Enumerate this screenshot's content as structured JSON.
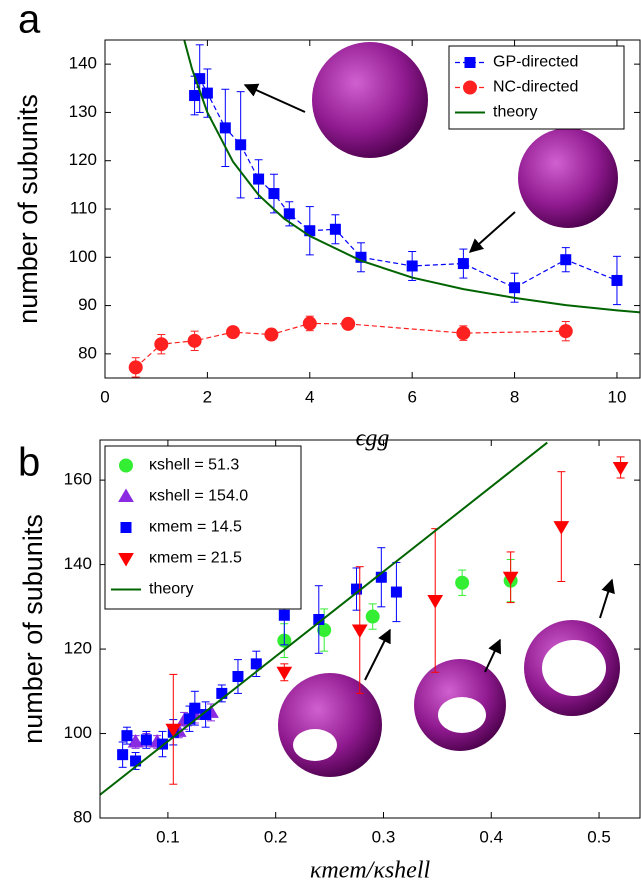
{
  "chart_data": [
    {
      "type": "line",
      "panel_label": "a",
      "y_label": "number of subunits",
      "x_label": "ϵgg",
      "xlim": [
        0,
        10.45
      ],
      "ylim": [
        75,
        145
      ],
      "xticks": [
        0,
        2,
        4,
        6,
        8,
        10
      ],
      "yticks": [
        80,
        90,
        100,
        110,
        120,
        130,
        140
      ],
      "legend": "upper right",
      "grid": false,
      "series": [
        {
          "name": "GP-directed",
          "color": "#0000ff",
          "marker": "square",
          "line_style": "dashed",
          "x": [
            1.75,
            1.85,
            2.0,
            2.35,
            2.65,
            3.0,
            3.3,
            3.6,
            4.0,
            4.5,
            5.0,
            6.0,
            7.0,
            8.0,
            9.0,
            10.0
          ],
          "values": [
            133.5,
            137,
            134,
            126.8,
            123.3,
            116.2,
            113.2,
            109,
            105.5,
            105.8,
            100,
            98.2,
            98.7,
            93.7,
            99.5,
            95.2
          ],
          "errors": [
            4,
            7,
            5,
            8,
            11,
            4,
            4,
            2.5,
            5,
            3,
            3,
            3,
            3,
            3,
            2.5,
            5
          ]
        },
        {
          "name": "NC-directed",
          "color": "#ff2020",
          "marker": "circle",
          "line_style": "dashed",
          "x": [
            0.6,
            1.1,
            1.75,
            2.5,
            3.25,
            4.0,
            4.75,
            7.0,
            9.0
          ],
          "values": [
            77.2,
            82,
            82.7,
            84.5,
            84,
            86.3,
            86.2,
            84.3,
            84.7
          ],
          "errors": [
            2,
            2,
            2,
            1,
            1,
            1.5,
            1,
            1.5,
            2
          ]
        },
        {
          "name": "theory",
          "color": "#006400",
          "marker": "none",
          "line_style": "solid",
          "x": [
            1.55,
            1.7,
            2,
            2.5,
            3,
            3.5,
            4,
            5,
            6,
            7,
            8,
            9,
            10,
            10.45
          ],
          "values": [
            144.9,
            139.0,
            130.0,
            119.8,
            112.9,
            108.0,
            104.4,
            99.3,
            95.8,
            93.4,
            91.6,
            90.1,
            89.0,
            88.6
          ]
        }
      ]
    },
    {
      "type": "scatter",
      "panel_label": "b",
      "y_label": "number of subunits",
      "x_label": "κmem/κshell",
      "xlim": [
        0.037,
        0.538
      ],
      "ylim": [
        80,
        169.5
      ],
      "xticks": [
        0.1,
        0.2,
        0.3,
        0.4,
        0.5
      ],
      "yticks": [
        80,
        100,
        120,
        140,
        160
      ],
      "legend": "upper left",
      "grid": false,
      "series": [
        {
          "name": "κshell = 51.3",
          "color": "#33ee33",
          "marker": "circle",
          "line_style": "none",
          "x": [
            0.208,
            0.245,
            0.29,
            0.373,
            0.418
          ],
          "values": [
            122,
            124.5,
            127.7,
            135.7,
            136.2
          ],
          "errors": [
            4,
            5,
            3,
            3,
            5
          ]
        },
        {
          "name": "κshell = 154.0",
          "color": "#8a2be2",
          "marker": "triangle-up",
          "line_style": "none",
          "x": [
            0.07,
            0.08,
            0.09,
            0.11,
            0.115,
            0.125,
            0.14
          ],
          "values": [
            98,
            98.5,
            98,
            100.5,
            103,
            104.5,
            105
          ],
          "errors": [
            1.5,
            1.5,
            1.5,
            1.5,
            2,
            2,
            2
          ]
        },
        {
          "name": "κmem = 14.5",
          "color": "#0000ff",
          "marker": "square",
          "line_style": "none",
          "x": [
            0.058,
            0.062,
            0.07,
            0.08,
            0.095,
            0.105,
            0.12,
            0.125,
            0.135,
            0.15,
            0.165,
            0.182,
            0.208,
            0.24,
            0.275,
            0.298,
            0.312
          ],
          "values": [
            95,
            99.5,
            93.5,
            98.5,
            97.5,
            100.3,
            103.5,
            106,
            104.5,
            109.5,
            113.5,
            116.5,
            128,
            127,
            134.2,
            137,
            133.5
          ],
          "errors": [
            3,
            2,
            2,
            2,
            3,
            3,
            3,
            4,
            3,
            2,
            4,
            3,
            7,
            8,
            5,
            7,
            7
          ]
        },
        {
          "name": "κmem = 21.5",
          "color": "#ff0000",
          "marker": "triangle-down",
          "line_style": "none",
          "x": [
            0.105,
            0.208,
            0.278,
            0.348,
            0.418,
            0.465,
            0.52
          ],
          "values": [
            101,
            114.5,
            124.5,
            131.5,
            137,
            149,
            163
          ],
          "errors": [
            13,
            2,
            15,
            17,
            6,
            13,
            2.5
          ]
        },
        {
          "name": "theory",
          "color": "#006400",
          "marker": "none",
          "line_style": "solid",
          "x": [
            0.037,
            0.452
          ],
          "values": [
            85.5,
            168.9
          ]
        }
      ]
    }
  ]
}
